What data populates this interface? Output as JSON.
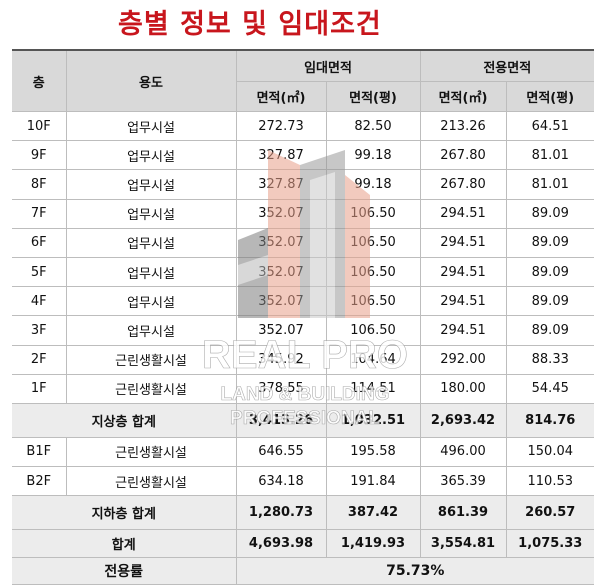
{
  "title": "층별 정보 및 임대조건",
  "headers": {
    "floor": "층",
    "usage": "용도",
    "lease_area": "임대면적",
    "exclusive_area": "전용면적",
    "sub": [
      "면적(㎡)",
      "면적(평)",
      "면적(㎡)",
      "면적(평)"
    ]
  },
  "above_rows": [
    {
      "floor": "10F",
      "usage": "업무시설",
      "lease_m2": "272.73",
      "lease_py": "82.50",
      "excl_m2": "213.26",
      "excl_py": "64.51"
    },
    {
      "floor": "9F",
      "usage": "업무시설",
      "lease_m2": "327.87",
      "lease_py": "99.18",
      "excl_m2": "267.80",
      "excl_py": "81.01"
    },
    {
      "floor": "8F",
      "usage": "업무시설",
      "lease_m2": "327.87",
      "lease_py": "99.18",
      "excl_m2": "267.80",
      "excl_py": "81.01"
    },
    {
      "floor": "7F",
      "usage": "업무시설",
      "lease_m2": "352.07",
      "lease_py": "106.50",
      "excl_m2": "294.51",
      "excl_py": "89.09"
    },
    {
      "floor": "6F",
      "usage": "업무시설",
      "lease_m2": "352.07",
      "lease_py": "106.50",
      "excl_m2": "294.51",
      "excl_py": "89.09"
    },
    {
      "floor": "5F",
      "usage": "업무시설",
      "lease_m2": "352.07",
      "lease_py": "106.50",
      "excl_m2": "294.51",
      "excl_py": "89.09"
    },
    {
      "floor": "4F",
      "usage": "업무시설",
      "lease_m2": "352.07",
      "lease_py": "106.50",
      "excl_m2": "294.51",
      "excl_py": "89.09"
    },
    {
      "floor": "3F",
      "usage": "업무시설",
      "lease_m2": "352.07",
      "lease_py": "106.50",
      "excl_m2": "294.51",
      "excl_py": "89.09"
    },
    {
      "floor": "2F",
      "usage": "근린생활시설",
      "lease_m2": "345.92",
      "lease_py": "104.64",
      "excl_m2": "292.00",
      "excl_py": "88.33"
    },
    {
      "floor": "1F",
      "usage": "근린생활시설",
      "lease_m2": "378.55",
      "lease_py": "114.51",
      "excl_m2": "180.00",
      "excl_py": "54.45"
    }
  ],
  "above_total": {
    "label": "지상층 합계",
    "lease_m2": "3,413.26",
    "lease_py": "1,032.51",
    "excl_m2": "2,693.42",
    "excl_py": "814.76"
  },
  "below_rows": [
    {
      "floor": "B1F",
      "usage": "근린생활시설",
      "lease_m2": "646.55",
      "lease_py": "195.58",
      "excl_m2": "496.00",
      "excl_py": "150.04"
    },
    {
      "floor": "B2F",
      "usage": "근린생활시설",
      "lease_m2": "634.18",
      "lease_py": "191.84",
      "excl_m2": "365.39",
      "excl_py": "110.53"
    }
  ],
  "below_total": {
    "label": "지하층 합계",
    "lease_m2": "1,280.73",
    "lease_py": "387.42",
    "excl_m2": "861.39",
    "excl_py": "260.57"
  },
  "grand_total": {
    "label": "합계",
    "lease_m2": "4,693.98",
    "lease_py": "1,419.93",
    "excl_m2": "3,554.81",
    "excl_py": "1,075.33"
  },
  "ratio": {
    "label": "전용률",
    "value": "75.73%"
  },
  "watermark": {
    "brand": "REAL PRO",
    "line2": "LAND & BUILDING",
    "line3": "PROFESSIONAL"
  },
  "colors": {
    "title": "#c8161d",
    "header_bg": "#d9d9d9",
    "subtotal_bg": "#ececec",
    "watermark_orange": "#e8a08a"
  }
}
